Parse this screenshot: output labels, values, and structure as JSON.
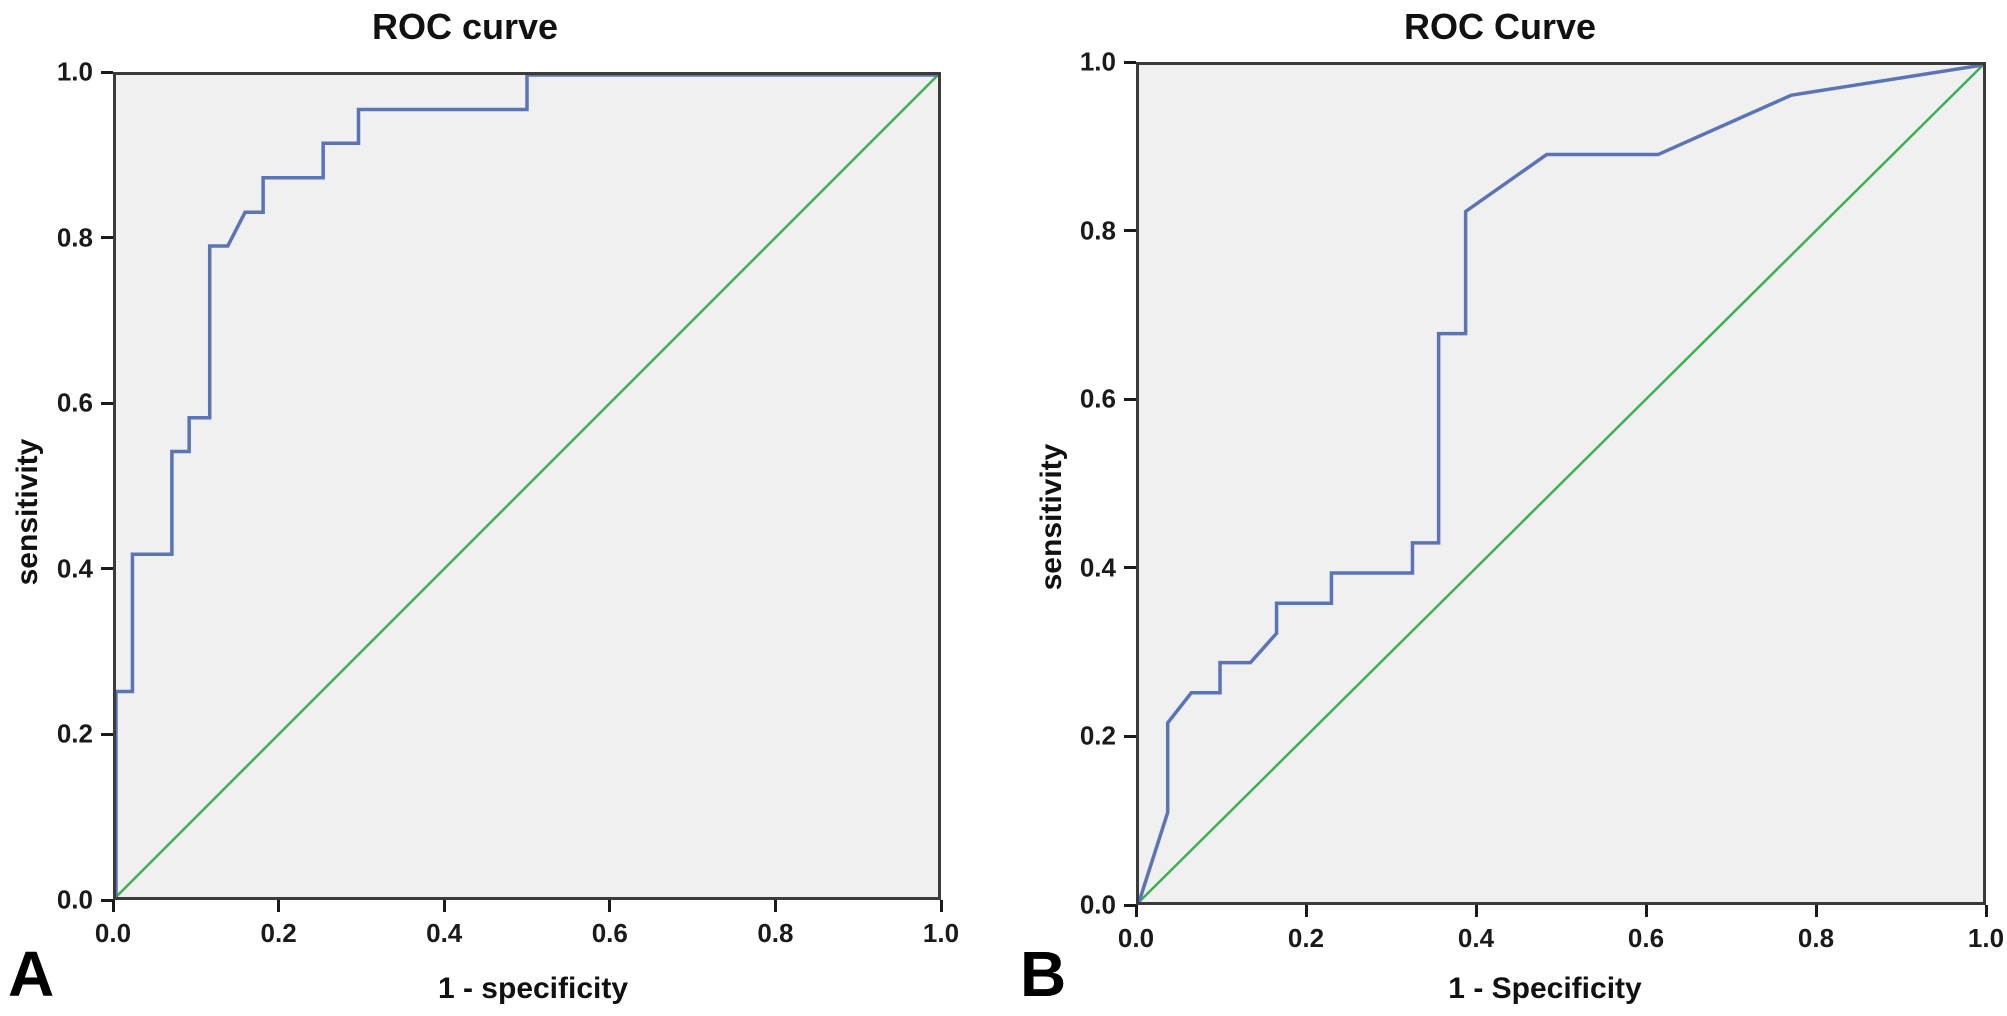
{
  "colors": {
    "curve_blue": "#5b74b5",
    "reference_green": "#3db052",
    "plot_background": "#f0f0f0",
    "axis_frame": "#3b3b3b",
    "text": "#111111"
  },
  "chart_data": [
    {
      "type": "line",
      "panel_label": "A",
      "title": "ROC curve",
      "xlabel": "1 - specificity",
      "ylabel": "sensitivity",
      "xlim": [
        0,
        1
      ],
      "ylim": [
        0,
        1
      ],
      "x_ticks": [
        "0.0",
        "0.2",
        "0.4",
        "0.6",
        "0.8",
        "1.0"
      ],
      "y_ticks": [
        "0.0",
        "0.2",
        "0.4",
        "0.6",
        "0.8",
        "1.0"
      ],
      "grid": "off",
      "legend": "none",
      "series": [
        {
          "name": "ROC curve",
          "color": "#5b74b5",
          "points": [
            [
              0.0,
              0.0
            ],
            [
              0.0,
              0.25
            ],
            [
              0.02,
              0.25
            ],
            [
              0.02,
              0.417
            ],
            [
              0.068,
              0.417
            ],
            [
              0.068,
              0.542
            ],
            [
              0.089,
              0.542
            ],
            [
              0.089,
              0.583
            ],
            [
              0.114,
              0.583
            ],
            [
              0.114,
              0.792
            ],
            [
              0.136,
              0.792
            ],
            [
              0.157,
              0.833
            ],
            [
              0.179,
              0.833
            ],
            [
              0.179,
              0.875
            ],
            [
              0.252,
              0.875
            ],
            [
              0.252,
              0.917
            ],
            [
              0.295,
              0.917
            ],
            [
              0.295,
              0.958
            ],
            [
              0.5,
              0.958
            ],
            [
              0.5,
              1.0
            ],
            [
              1.0,
              1.0
            ]
          ]
        },
        {
          "name": "reference diagonal",
          "color": "#3db052",
          "points": [
            [
              0.0,
              0.0
            ],
            [
              1.0,
              1.0
            ]
          ]
        }
      ]
    },
    {
      "type": "line",
      "panel_label": "B",
      "title": "ROC Curve",
      "xlabel": "1 - Specificity",
      "ylabel": "sensitivity",
      "xlim": [
        0,
        1
      ],
      "ylim": [
        0,
        1
      ],
      "x_ticks": [
        "0.0",
        "0.2",
        "0.4",
        "0.6",
        "0.8",
        "1.0"
      ],
      "y_ticks": [
        "0.0",
        "0.2",
        "0.4",
        "0.6",
        "0.8",
        "1.0"
      ],
      "grid": "off",
      "legend": "none",
      "series": [
        {
          "name": "ROC curve",
          "color": "#5b74b5",
          "points": [
            [
              0.0,
              0.0
            ],
            [
              0.034,
              0.107
            ],
            [
              0.034,
              0.214
            ],
            [
              0.062,
              0.25
            ],
            [
              0.096,
              0.25
            ],
            [
              0.096,
              0.286
            ],
            [
              0.132,
              0.286
            ],
            [
              0.163,
              0.321
            ],
            [
              0.163,
              0.357
            ],
            [
              0.228,
              0.357
            ],
            [
              0.228,
              0.393
            ],
            [
              0.324,
              0.393
            ],
            [
              0.324,
              0.429
            ],
            [
              0.355,
              0.429
            ],
            [
              0.355,
              0.679
            ],
            [
              0.387,
              0.679
            ],
            [
              0.387,
              0.825
            ],
            [
              0.483,
              0.893
            ],
            [
              0.615,
              0.893
            ],
            [
              0.773,
              0.964
            ],
            [
              1.0,
              1.0
            ]
          ]
        },
        {
          "name": "reference diagonal",
          "color": "#3db052",
          "points": [
            [
              0.0,
              0.0
            ],
            [
              1.0,
              1.0
            ]
          ]
        }
      ]
    }
  ]
}
